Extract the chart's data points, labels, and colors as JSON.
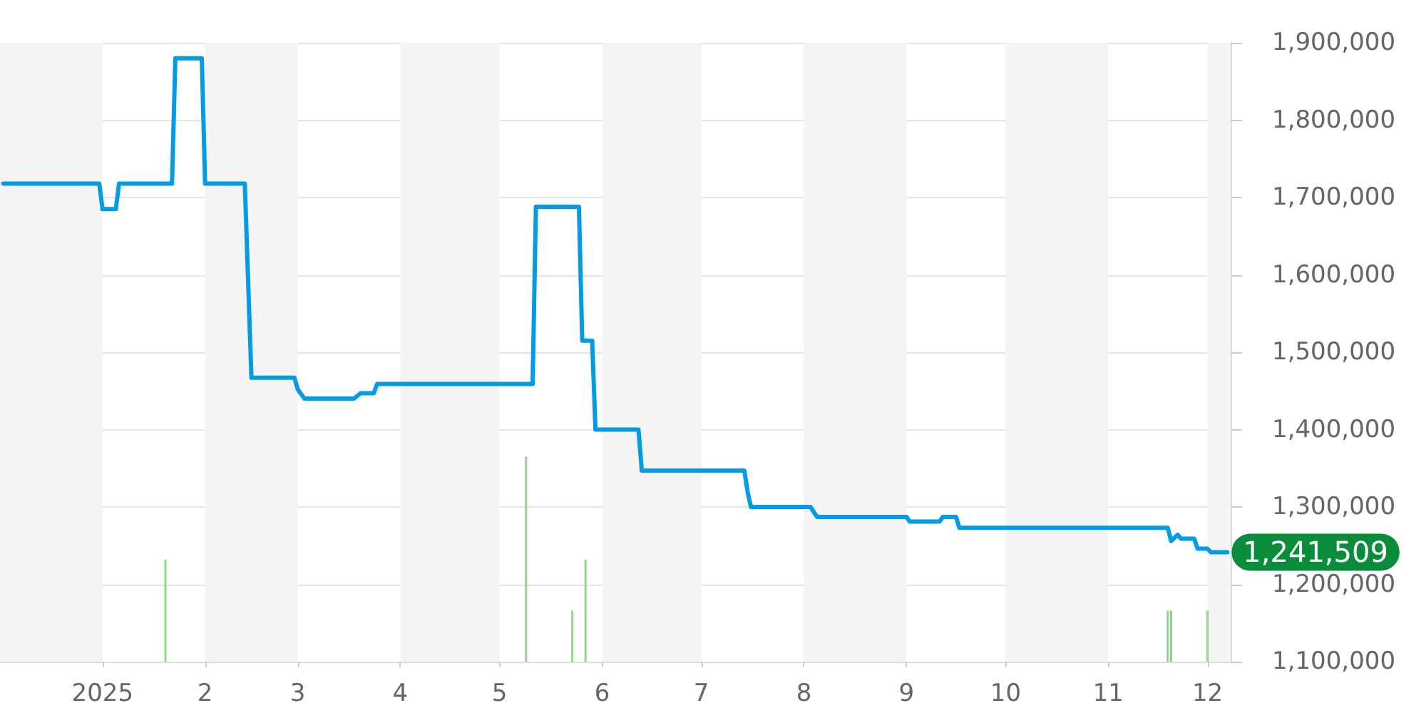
{
  "chart_data": {
    "type": "line",
    "xlim": [
      "2024-12-01",
      "2025-12-08"
    ],
    "xticks": [
      {
        "value": "2025-01-01",
        "label": "2025"
      },
      {
        "value": "2025-02-01",
        "label": "2"
      },
      {
        "value": "2025-03-01",
        "label": "3"
      },
      {
        "value": "2025-04-01",
        "label": "4"
      },
      {
        "value": "2025-05-01",
        "label": "5"
      },
      {
        "value": "2025-06-01",
        "label": "6"
      },
      {
        "value": "2025-07-01",
        "label": "7"
      },
      {
        "value": "2025-08-01",
        "label": "8"
      },
      {
        "value": "2025-09-01",
        "label": "9"
      },
      {
        "value": "2025-10-01",
        "label": "10"
      },
      {
        "value": "2025-11-01",
        "label": "11"
      },
      {
        "value": "2025-12-01",
        "label": "12"
      }
    ],
    "ylim": [
      1100000,
      1900000
    ],
    "yticks": [
      {
        "value": 1100000,
        "label": "1,100,000"
      },
      {
        "value": 1200000,
        "label": "1,200,000"
      },
      {
        "value": 1300000,
        "label": "1,300,000"
      },
      {
        "value": 1400000,
        "label": "1,400,000"
      },
      {
        "value": 1500000,
        "label": "1,500,000"
      },
      {
        "value": 1600000,
        "label": "1,600,000"
      },
      {
        "value": 1700000,
        "label": "1,700,000"
      },
      {
        "value": 1800000,
        "label": "1,800,000"
      },
      {
        "value": 1900000,
        "label": "1,900,000"
      }
    ],
    "series": [
      {
        "color": "#039be5",
        "x": [
          "2024-12-02",
          "2024-12-31",
          "2025-01-01",
          "2025-01-05",
          "2025-01-06",
          "2025-01-22",
          "2025-01-23",
          "2025-01-31",
          "2025-02-01",
          "2025-02-13",
          "2025-02-15",
          "2025-02-28",
          "2025-03-01",
          "2025-03-03",
          "2025-03-18",
          "2025-03-20",
          "2025-03-24",
          "2025-03-25",
          "2025-05-11",
          "2025-05-12",
          "2025-05-25",
          "2025-05-26",
          "2025-05-29",
          "2025-05-30",
          "2025-06-12",
          "2025-06-13",
          "2025-07-14",
          "2025-07-15",
          "2025-07-16",
          "2025-08-03",
          "2025-08-05",
          "2025-09-01",
          "2025-09-02",
          "2025-09-11",
          "2025-09-12",
          "2025-09-16",
          "2025-09-17",
          "2025-11-19",
          "2025-11-20",
          "2025-11-22",
          "2025-11-23",
          "2025-11-27",
          "2025-11-28",
          "2025-12-01",
          "2025-12-02",
          "2025-12-07"
        ],
        "values": [
          1718000,
          1718000,
          1685000,
          1685000,
          1718000,
          1718000,
          1880000,
          1880000,
          1718000,
          1718000,
          1467000,
          1467000,
          1452000,
          1440000,
          1440000,
          1447000,
          1447000,
          1459000,
          1459000,
          1688000,
          1688000,
          1515000,
          1515000,
          1400000,
          1400000,
          1347000,
          1347000,
          1319000,
          1300000,
          1300000,
          1287000,
          1287000,
          1281000,
          1281000,
          1287000,
          1287000,
          1273000,
          1273000,
          1256000,
          1264000,
          1259000,
          1259000,
          1246000,
          1246000,
          1241509,
          1241509
        ]
      },
      {
        "type": "bar",
        "color": "#90d490",
        "x": [
          "2025-01-20",
          "2025-05-09",
          "2025-05-23",
          "2025-05-27",
          "2025-11-19",
          "2025-11-20",
          "2025-12-01"
        ],
        "values": [
          1232000,
          1365000,
          1166000,
          1232000,
          1166000,
          1166000,
          1166000
        ]
      }
    ],
    "bands": [
      {
        "axis": "x",
        "from": "2024-12-01",
        "to": "2025-01-01",
        "color": "#f4f4f4"
      },
      {
        "axis": "x",
        "from": "2025-02-01",
        "to": "2025-03-01",
        "color": "#f4f4f4"
      },
      {
        "axis": "x",
        "from": "2025-04-01",
        "to": "2025-05-01",
        "color": "#f4f4f4"
      },
      {
        "axis": "x",
        "from": "2025-06-01",
        "to": "2025-07-01",
        "color": "#f4f4f4"
      },
      {
        "axis": "x",
        "from": "2025-08-01",
        "to": "2025-09-01",
        "color": "#f4f4f4"
      },
      {
        "axis": "x",
        "from": "2025-10-01",
        "to": "2025-11-01",
        "color": "#f4f4f4"
      },
      {
        "axis": "x",
        "from": "2025-12-01",
        "to": "2025-12-08",
        "color": "#f4f4f4"
      }
    ],
    "annotations": [
      {
        "text": "1,241,509",
        "x": "2025-12-07",
        "y": 1241509
      }
    ],
    "grid": "y",
    "marker": "none",
    "line_style": "solid"
  }
}
